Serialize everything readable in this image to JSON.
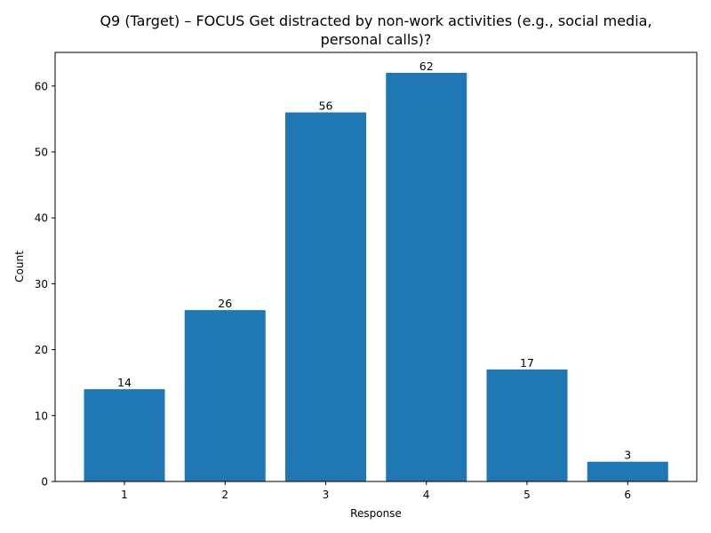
{
  "chart_data": {
    "type": "bar",
    "title_lines": [
      "Q9 (Target) – FOCUS Get distracted by non-work activities (e.g., social media,",
      "personal calls)?"
    ],
    "xlabel": "Response",
    "ylabel": "Count",
    "categories": [
      "1",
      "2",
      "3",
      "4",
      "5",
      "6"
    ],
    "values": [
      14,
      26,
      56,
      62,
      17,
      3
    ],
    "data_labels": [
      "14",
      "26",
      "56",
      "62",
      "17",
      "3"
    ],
    "ylim": [
      0,
      65.1
    ],
    "yticks": [
      0,
      10,
      20,
      30,
      40,
      50,
      60
    ],
    "ytick_labels": [
      "0",
      "10",
      "20",
      "30",
      "40",
      "50",
      "60"
    ],
    "grid": false,
    "legend": "none",
    "bar_color": "#1f77b4"
  }
}
